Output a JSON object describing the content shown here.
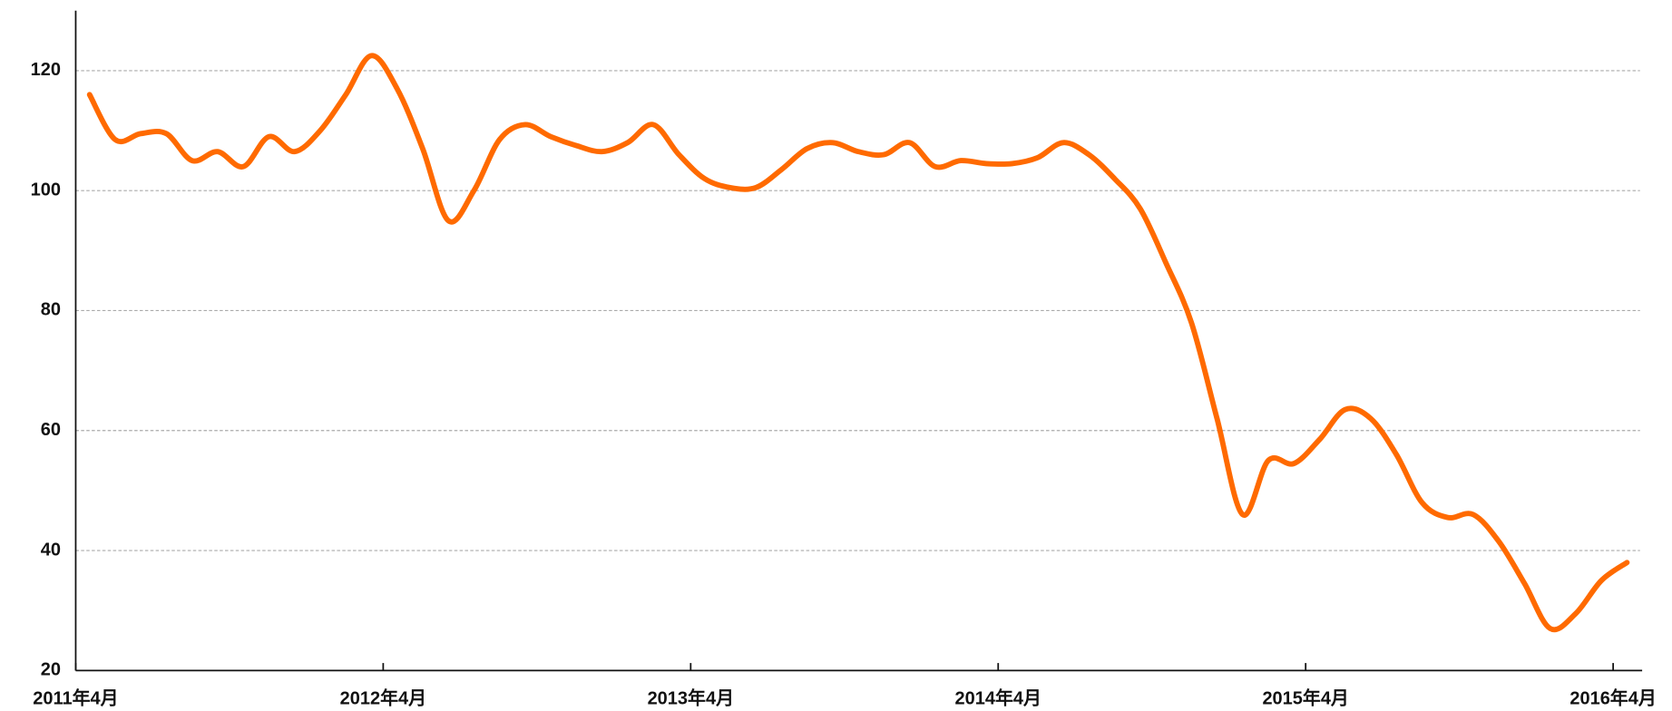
{
  "chart_data": {
    "type": "line",
    "x": [
      "2011-04",
      "2011-05",
      "2011-06",
      "2011-07",
      "2011-08",
      "2011-09",
      "2011-10",
      "2011-11",
      "2011-12",
      "2012-01",
      "2012-02",
      "2012-03",
      "2012-04",
      "2012-05",
      "2012-06",
      "2012-07",
      "2012-08",
      "2012-09",
      "2012-10",
      "2012-11",
      "2012-12",
      "2013-01",
      "2013-02",
      "2013-03",
      "2013-04",
      "2013-05",
      "2013-06",
      "2013-07",
      "2013-08",
      "2013-09",
      "2013-10",
      "2013-11",
      "2013-12",
      "2014-01",
      "2014-02",
      "2014-03",
      "2014-04",
      "2014-05",
      "2014-06",
      "2014-07",
      "2014-08",
      "2014-09",
      "2014-10",
      "2014-11",
      "2014-12",
      "2015-01",
      "2015-02",
      "2015-03",
      "2015-04",
      "2015-05",
      "2015-06",
      "2015-07",
      "2015-08",
      "2015-09",
      "2015-10",
      "2015-11",
      "2015-12",
      "2016-01",
      "2016-02",
      "2016-03",
      "2016-04"
    ],
    "series": [
      {
        "color": "#ff6a00",
        "values": [
          116,
          108.5,
          109.5,
          109.5,
          105,
          106.5,
          104,
          109,
          106.5,
          110,
          116,
          122.5,
          117,
          107,
          95,
          100,
          108.5,
          111,
          109,
          107.5,
          106.5,
          108,
          111,
          106,
          102,
          100.5,
          100.5,
          103.5,
          107,
          108,
          106.5,
          106,
          108,
          104,
          105,
          104.5,
          104.5,
          105.5,
          108,
          106,
          102,
          97,
          88,
          78,
          62,
          46,
          55,
          54.5,
          58.5,
          63.5,
          62,
          56,
          48,
          45.5,
          46,
          41.5,
          34.5,
          27,
          29.5,
          35,
          38
        ]
      }
    ],
    "xticks": [
      {
        "value": "2011-04",
        "label": "2011年4月"
      },
      {
        "value": "2012-04",
        "label": "2012年4月"
      },
      {
        "value": "2013-04",
        "label": "2013年4月"
      },
      {
        "value": "2014-04",
        "label": "2014年4月"
      },
      {
        "value": "2015-04",
        "label": "2015年4月"
      },
      {
        "value": "2016-04",
        "label": "2016年4月"
      }
    ],
    "ylim": [
      20,
      130
    ],
    "yticks": [
      20,
      40,
      60,
      80,
      100,
      120
    ],
    "grid": true
  }
}
